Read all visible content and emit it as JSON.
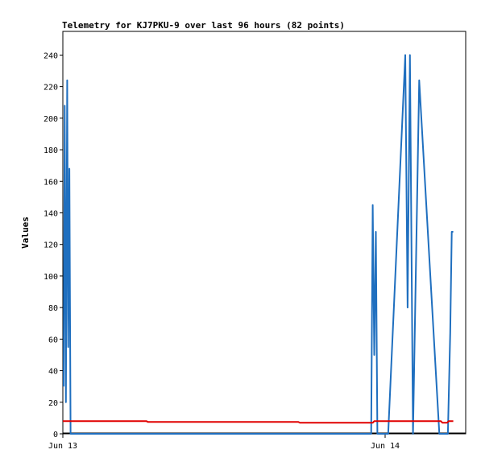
{
  "chart_data": {
    "type": "line",
    "title": "Telemetry for KJ7PKU-9 over last 96 hours (82 points)",
    "xlabel": "",
    "ylabel": "Values",
    "ylim": [
      0,
      255
    ],
    "yticks": [
      0,
      20,
      40,
      60,
      80,
      100,
      120,
      140,
      160,
      180,
      200,
      220,
      240
    ],
    "x_unit": "hours since Jun 13 00:00",
    "xlim": [
      0,
      26
    ],
    "xticks": [
      {
        "x": 0,
        "label": "Jun 13"
      },
      {
        "x": 20.8,
        "label": "Jun 14"
      }
    ],
    "grid": false,
    "legend": "none",
    "series": [
      {
        "color": "#1f6fbf",
        "points": [
          [
            0.05,
            30
          ],
          [
            0.12,
            208
          ],
          [
            0.2,
            20
          ],
          [
            0.28,
            224
          ],
          [
            0.35,
            55
          ],
          [
            0.42,
            168
          ],
          [
            0.5,
            0
          ],
          [
            19.9,
            0
          ],
          [
            20.0,
            145
          ],
          [
            20.1,
            50
          ],
          [
            20.2,
            128
          ],
          [
            20.3,
            0
          ],
          [
            21.0,
            0
          ],
          [
            22.1,
            240
          ],
          [
            22.25,
            80
          ],
          [
            22.4,
            240
          ],
          [
            22.6,
            0
          ],
          [
            23.0,
            224
          ],
          [
            24.3,
            0
          ],
          [
            24.85,
            0
          ],
          [
            25.0,
            64
          ],
          [
            25.1,
            128
          ],
          [
            25.2,
            128
          ]
        ]
      },
      {
        "color": "#e00000",
        "points": [
          [
            0.0,
            8
          ],
          [
            5.4,
            8
          ],
          [
            5.5,
            7.5
          ],
          [
            15.2,
            7.5
          ],
          [
            15.3,
            7
          ],
          [
            20.0,
            7
          ],
          [
            20.1,
            8
          ],
          [
            24.4,
            8
          ],
          [
            24.5,
            7
          ],
          [
            24.8,
            7
          ],
          [
            24.9,
            8
          ],
          [
            25.2,
            8
          ]
        ]
      }
    ]
  }
}
